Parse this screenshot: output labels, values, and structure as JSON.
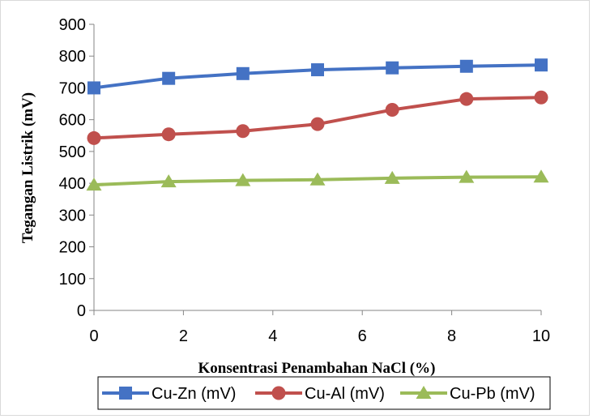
{
  "chart_data": {
    "type": "line",
    "title": "",
    "xlabel": "Konsentrasi Penambahan NaCl (%)",
    "ylabel": "Tegangan Listrik (mV)",
    "xlim": [
      0,
      10
    ],
    "ylim": [
      0,
      900
    ],
    "xticks": [
      "0",
      "2",
      "4",
      "6",
      "8",
      "10"
    ],
    "yticks": [
      "0",
      "100",
      "200",
      "300",
      "400",
      "500",
      "600",
      "700",
      "800",
      "900"
    ],
    "grid": false,
    "legend_position": "bottom",
    "x": [
      0,
      1.67,
      3.33,
      5,
      6.67,
      8.33,
      10
    ],
    "series": [
      {
        "name": "Cu-Zn (mV)",
        "color": "#4472c4",
        "marker": "square",
        "values": [
          700,
          730,
          745,
          757,
          763,
          768,
          772
        ]
      },
      {
        "name": "Cu-Al (mV)",
        "color": "#c0504d",
        "marker": "circle",
        "values": [
          542,
          554,
          564,
          586,
          631,
          665,
          670
        ]
      },
      {
        "name": "Cu-Pb (mV)",
        "color": "#9bbb59",
        "marker": "triangle",
        "values": [
          395,
          405,
          409,
          411,
          416,
          419,
          420
        ]
      }
    ]
  }
}
